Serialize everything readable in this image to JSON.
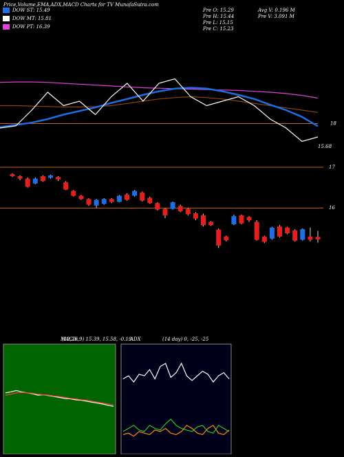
{
  "header": {
    "title": "Price,Volume,EMA,ADX,MACD Charts for TV MunafaSutra.com",
    "legend": [
      {
        "label": "DOW ST: 15.49",
        "color": "#1e6ee6"
      },
      {
        "label": "DOW MT: 15.81",
        "color": "#ffffff"
      },
      {
        "label": "DOW PT: 16.39",
        "color": "#e040e0"
      }
    ],
    "info": [
      "Pre O: 15.29",
      "Pre H: 15.44",
      "Pre L: 15.15",
      "Pre C: 15.23"
    ],
    "info2": [
      "Avg V: 0.196 M",
      "Pre V: 3.091 M"
    ]
  },
  "chart_data": [
    {
      "type": "line",
      "ylim": [
        17.3,
        19.3
      ],
      "yticks": [
        18
      ],
      "annotation": "15.68",
      "series": [
        {
          "color": "#8b4513",
          "values": [
            18.4,
            18.4,
            18.39,
            18.38,
            18.37,
            18.37,
            18.38,
            18.4,
            18.45,
            18.5,
            18.55,
            18.58,
            18.6,
            18.58,
            18.55,
            18.5,
            18.45,
            18.4,
            18.35,
            18.3,
            18.25
          ]
        },
        {
          "color": "#e040e0",
          "values": [
            18.92,
            18.93,
            18.93,
            18.92,
            18.9,
            18.88,
            18.86,
            18.84,
            18.82,
            18.8,
            18.79,
            18.78,
            18.77,
            18.76,
            18.75,
            18.74,
            18.72,
            18.7,
            18.67,
            18.63,
            18.57
          ]
        },
        {
          "color": "#1e6ee6",
          "values": [
            17.92,
            17.97,
            18.02,
            18.1,
            18.2,
            18.28,
            18.36,
            18.46,
            18.55,
            18.64,
            18.72,
            18.78,
            18.8,
            18.78,
            18.72,
            18.64,
            18.55,
            18.42,
            18.3,
            18.15,
            17.94
          ]
        },
        {
          "color": "#ffffff",
          "values": [
            17.9,
            17.95,
            18.3,
            18.7,
            18.4,
            18.5,
            18.2,
            18.6,
            18.9,
            18.5,
            18.9,
            19.0,
            18.6,
            18.4,
            18.5,
            18.6,
            18.4,
            18.1,
            17.9,
            17.6,
            17.7
          ]
        }
      ]
    },
    {
      "type": "candlestick",
      "ylim": [
        13,
        17.05
      ],
      "yticks": [
        16,
        17
      ],
      "up_color": "#1e6ee6",
      "down_color": "#e61e1e",
      "open": [
        16.83,
        16.78,
        16.72,
        16.6,
        16.78,
        16.74,
        16.76,
        16.63,
        16.42,
        16.3,
        16.22,
        16.06,
        16.1,
        16.22,
        16.15,
        16.33,
        16.3,
        16.38,
        16.25,
        16.12,
        15.98,
        15.98,
        16.05,
        15.98,
        15.87,
        15.82,
        15.66,
        15.47,
        15.3,
        15.6,
        15.82,
        15.78,
        15.66,
        15.3,
        15.25,
        15.55,
        15.52,
        15.45,
        15.22,
        15.3,
        15.29
      ],
      "high": [
        16.85,
        16.8,
        16.75,
        16.75,
        16.8,
        16.82,
        16.78,
        16.66,
        16.44,
        16.32,
        16.24,
        16.22,
        16.24,
        16.24,
        16.32,
        16.36,
        16.44,
        16.4,
        16.28,
        16.14,
        16.0,
        16.16,
        16.08,
        16.0,
        15.9,
        15.86,
        15.68,
        15.5,
        15.32,
        15.84,
        15.84,
        15.8,
        15.7,
        15.32,
        15.54,
        15.58,
        15.54,
        15.48,
        15.5,
        15.52,
        15.44
      ],
      "low": [
        16.76,
        16.68,
        16.5,
        16.58,
        16.64,
        16.72,
        16.66,
        16.44,
        16.28,
        16.2,
        16.05,
        16.0,
        16.08,
        16.12,
        16.14,
        16.18,
        16.28,
        16.16,
        16.1,
        15.94,
        15.75,
        15.96,
        15.9,
        15.82,
        15.7,
        15.55,
        15.56,
        15.02,
        15.18,
        15.58,
        15.6,
        15.66,
        15.2,
        15.14,
        15.22,
        15.28,
        15.36,
        15.18,
        15.2,
        15.18,
        15.15
      ],
      "close": [
        16.78,
        16.72,
        16.52,
        16.72,
        16.66,
        16.8,
        16.7,
        16.45,
        16.3,
        16.22,
        16.08,
        16.2,
        16.22,
        16.15,
        16.3,
        16.2,
        16.42,
        16.18,
        16.12,
        15.96,
        15.82,
        16.14,
        15.92,
        15.85,
        15.74,
        15.58,
        15.58,
        15.08,
        15.21,
        15.8,
        15.62,
        15.7,
        15.22,
        15.17,
        15.52,
        15.3,
        15.38,
        15.2,
        15.48,
        15.22,
        15.23
      ]
    },
    {
      "type": "line",
      "title": "MACD:",
      "subtitle": "(12,26,9) 15.39, 15.58, -0.19",
      "ylim": [
        -1,
        1
      ],
      "series": [
        {
          "color": "#ffffff",
          "values": [
            0.1,
            0.12,
            0.15,
            0.12,
            0.1,
            0.08,
            0.05,
            0.06,
            0.04,
            0.02,
            0.0,
            -0.02,
            -0.03,
            -0.05,
            -0.06,
            -0.08,
            -0.1,
            -0.12,
            -0.14,
            -0.17,
            -0.19
          ]
        },
        {
          "color": "#ff4040",
          "values": [
            0.05,
            0.07,
            0.1,
            0.11,
            0.1,
            0.09,
            0.07,
            0.06,
            0.05,
            0.03,
            0.02,
            0.0,
            -0.02,
            -0.03,
            -0.05,
            -0.06,
            -0.08,
            -0.1,
            -0.12,
            -0.14,
            -0.16
          ]
        }
      ]
    },
    {
      "type": "line",
      "title": "ADX",
      "subtitle": "(14 day) 0, -25, -25",
      "ylim": [
        0,
        60
      ],
      "series": [
        {
          "color": "#ffffff",
          "values": [
            42,
            44,
            40,
            45,
            44,
            48,
            42,
            50,
            52,
            43,
            46,
            52,
            44,
            41,
            44,
            47,
            45,
            40,
            44,
            46,
            42
          ]
        },
        {
          "color": "#22cc22",
          "values": [
            8,
            10,
            12,
            9,
            8,
            12,
            10,
            9,
            13,
            16,
            12,
            10,
            9,
            8,
            11,
            12,
            8,
            7,
            12,
            10,
            8
          ]
        },
        {
          "color": "#ff8c00",
          "values": [
            6,
            7,
            5,
            8,
            7,
            6,
            9,
            8,
            10,
            7,
            6,
            8,
            12,
            10,
            7,
            6,
            10,
            12,
            7,
            6,
            9
          ]
        }
      ]
    }
  ]
}
